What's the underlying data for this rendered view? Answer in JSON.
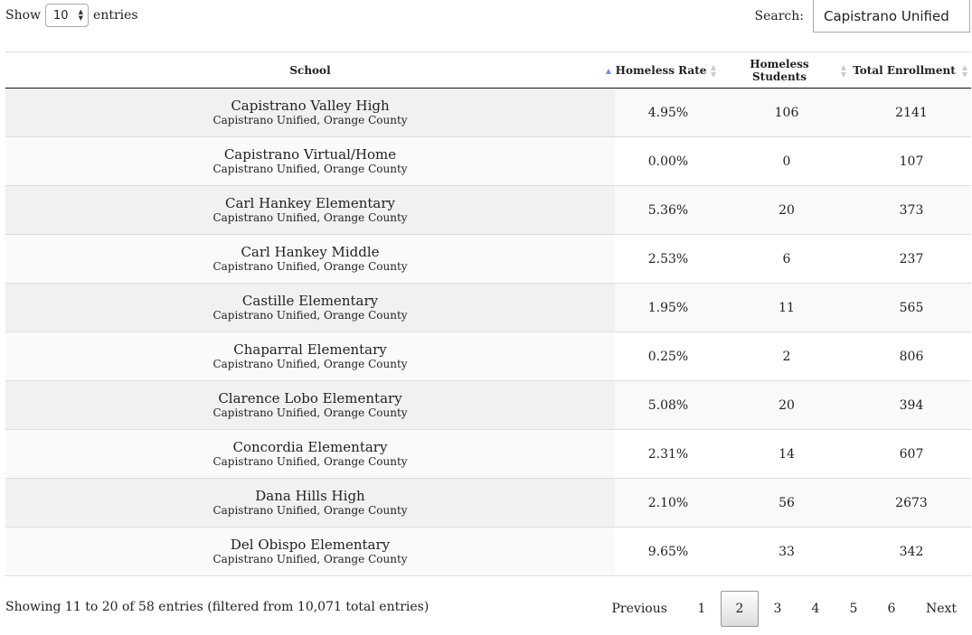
{
  "length_control": {
    "prefix": "Show",
    "value": "10",
    "suffix": "entries"
  },
  "search": {
    "label": "Search:",
    "value": "Capistrano Unified"
  },
  "columns": [
    {
      "label": "School"
    },
    {
      "label": "Homeless Rate"
    },
    {
      "label": "Homeless Students"
    },
    {
      "label": "Total Enrollment"
    }
  ],
  "rows": [
    {
      "school": "Capistrano Valley High",
      "district": "Capistrano Unified, Orange County",
      "rate": "4.95%",
      "students": "106",
      "enrollment": "2141"
    },
    {
      "school": "Capistrano Virtual/Home",
      "district": "Capistrano Unified, Orange County",
      "rate": "0.00%",
      "students": "0",
      "enrollment": "107"
    },
    {
      "school": "Carl Hankey Elementary",
      "district": "Capistrano Unified, Orange County",
      "rate": "5.36%",
      "students": "20",
      "enrollment": "373"
    },
    {
      "school": "Carl Hankey Middle",
      "district": "Capistrano Unified, Orange County",
      "rate": "2.53%",
      "students": "6",
      "enrollment": "237"
    },
    {
      "school": "Castille Elementary",
      "district": "Capistrano Unified, Orange County",
      "rate": "1.95%",
      "students": "11",
      "enrollment": "565"
    },
    {
      "school": "Chaparral Elementary",
      "district": "Capistrano Unified, Orange County",
      "rate": "0.25%",
      "students": "2",
      "enrollment": "806"
    },
    {
      "school": "Clarence Lobo Elementary",
      "district": "Capistrano Unified, Orange County",
      "rate": "5.08%",
      "students": "20",
      "enrollment": "394"
    },
    {
      "school": "Concordia Elementary",
      "district": "Capistrano Unified, Orange County",
      "rate": "2.31%",
      "students": "14",
      "enrollment": "607"
    },
    {
      "school": "Dana Hills High",
      "district": "Capistrano Unified, Orange County",
      "rate": "2.10%",
      "students": "56",
      "enrollment": "2673"
    },
    {
      "school": "Del Obispo Elementary",
      "district": "Capistrano Unified, Orange County",
      "rate": "9.65%",
      "students": "33",
      "enrollment": "342"
    }
  ],
  "info": "Showing 11 to 20 of 58 entries (filtered from 10,071 total entries)",
  "pagination": {
    "previous": "Previous",
    "pages": [
      "1",
      "2",
      "3",
      "4",
      "5",
      "6"
    ],
    "current": "2",
    "next": "Next"
  },
  "colors": {
    "sort_active": "#7b8fd9",
    "sort_inactive": "#cccccc"
  },
  "icons": {
    "sort_asc": "sort-asc-icon",
    "sort_both": "sort-both-icon",
    "select_arrows": "spinner-arrows-icon"
  }
}
